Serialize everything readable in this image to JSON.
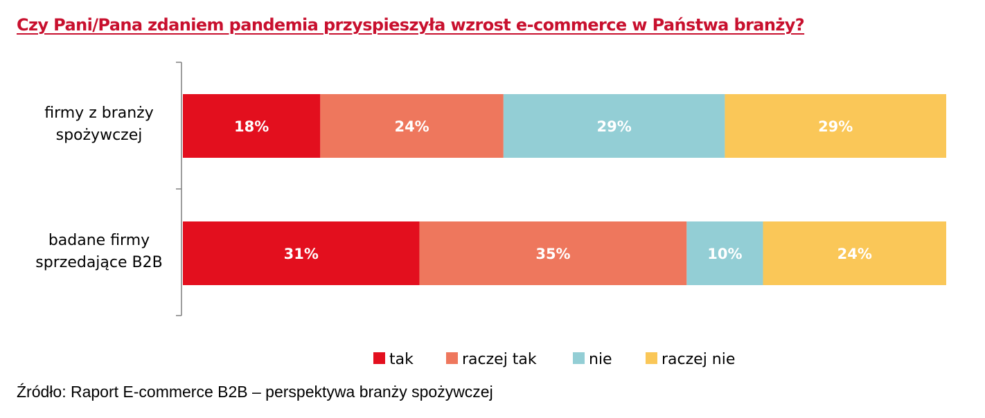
{
  "title": "Czy Pani/Pana zdaniem pandemia przyspieszyła wzrost e-commerce w Państwa branży?",
  "source": "Źródło: Raport E-commerce B2B – perspektywa branży spożywczej",
  "colors": {
    "tak": "#e30f1e",
    "raczej_tak": "#ee775d",
    "nie": "#93ced5",
    "raczej_nie": "#fac758",
    "title": "#c8102e",
    "axis": "#7f7f7f"
  },
  "chart_data": {
    "type": "bar",
    "orientation": "horizontal",
    "stacked": true,
    "percent_stacked": true,
    "title": "Czy Pani/Pana zdaniem pandemia przyspieszyła wzrost e-commerce w Państwa branży?",
    "categories": [
      [
        "firmy z branży",
        "spożywczej"
      ],
      [
        "badane firmy",
        "sprzedające B2B"
      ]
    ],
    "series": [
      {
        "name": "tak",
        "color": "#e30f1e",
        "values": [
          18,
          31
        ],
        "labels": [
          "18%",
          "31%"
        ]
      },
      {
        "name": "raczej tak",
        "color": "#ee775d",
        "values": [
          24,
          35
        ],
        "labels": [
          "24%",
          "35%"
        ]
      },
      {
        "name": "nie",
        "color": "#93ced5",
        "values": [
          29,
          10
        ],
        "labels": [
          "29%",
          "10%"
        ]
      },
      {
        "name": "raczej nie",
        "color": "#fac758",
        "values": [
          29,
          24
        ],
        "labels": [
          "29%",
          "24%"
        ]
      }
    ],
    "xlim": [
      0,
      100
    ],
    "grid": false,
    "legend_position": "bottom"
  }
}
